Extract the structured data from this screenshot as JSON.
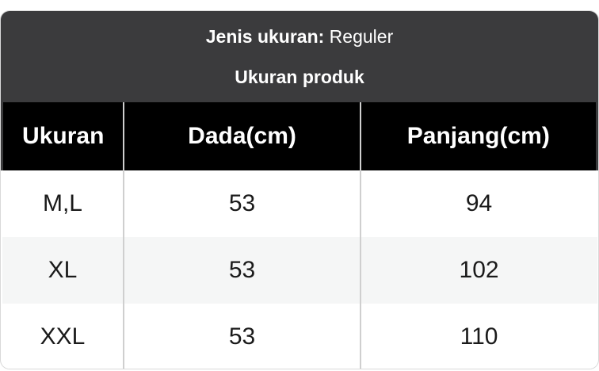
{
  "size_info": {
    "type_label": "Jenis ukuran:",
    "type_value": " Reguler",
    "table_title": "Ukuran produk"
  },
  "table": {
    "columns": [
      "Ukuran",
      "Dada(cm)",
      "Panjang(cm)"
    ],
    "rows": [
      [
        "M,L",
        "53",
        "94"
      ],
      [
        "XL",
        "53",
        "102"
      ],
      [
        "XXL",
        "53",
        "110"
      ]
    ]
  },
  "colors": {
    "caption_bg": "#3b3b3d",
    "table_head_bg": "#000000",
    "row_alt_bg": "#f5f6f6",
    "separator": "#cfcfcf",
    "card_border": "#d9d9d9",
    "text_light": "#ffffff",
    "text_dark": "#1a1a1a"
  }
}
